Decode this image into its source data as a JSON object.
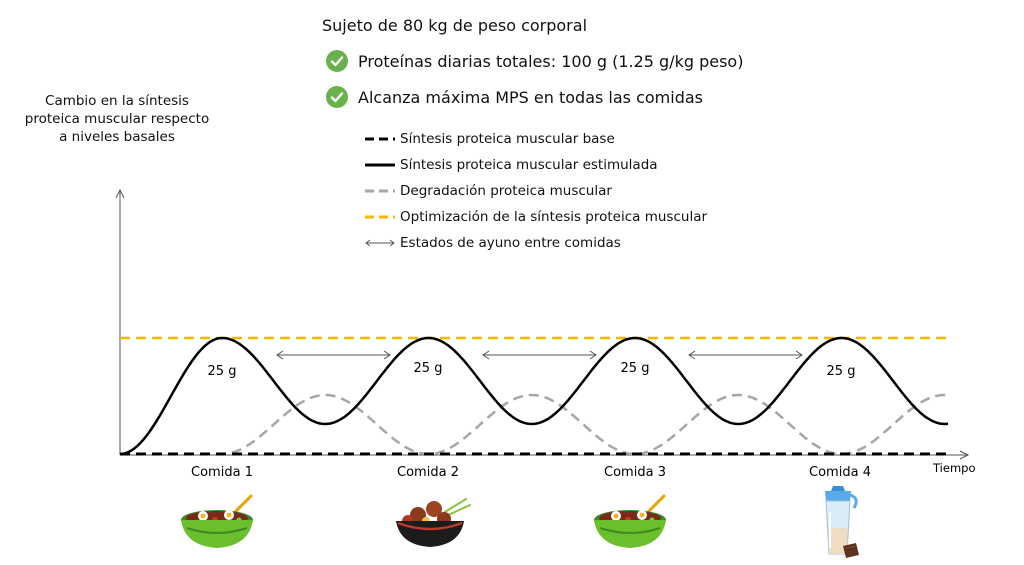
{
  "header": {
    "title": "Sujeto de 80 kg de peso corporal",
    "checks": [
      "Proteínas diarias totales: 100 g (1.25 g/kg peso)",
      "Alcanza máxima MPS en todas las comidas"
    ]
  },
  "axes": {
    "ylabel": "Cambio en la síntesis proteica muscular respecto a niveles basales",
    "xlabel": "Tiempo"
  },
  "legend": [
    {
      "label": "Síntesis proteica muscular base",
      "style": "dashed",
      "color": "#000000"
    },
    {
      "label": "Síntesis proteica muscular estimulada",
      "style": "solid",
      "color": "#000000"
    },
    {
      "label": "Degradación proteica muscular",
      "style": "dashed",
      "color": "#a6a6a6"
    },
    {
      "label": "Optimización de la síntesis proteica muscular",
      "style": "dashed",
      "color": "#f5b800"
    },
    {
      "label": "Estados de ayuno entre comidas",
      "style": "double-arrow",
      "color": "#555555"
    }
  ],
  "meals": [
    {
      "label": "Comida 1",
      "amount": "25 g",
      "icon": "salad-bowl-icon"
    },
    {
      "label": "Comida 2",
      "amount": "25 g",
      "icon": "meatball-bowl-icon"
    },
    {
      "label": "Comida 3",
      "amount": "25 g",
      "icon": "salad-bowl-icon"
    },
    {
      "label": "Comida 4",
      "amount": "25 g",
      "icon": "protein-shaker-icon"
    }
  ],
  "colors": {
    "check": "#6ab04c",
    "optimal": "#f5b800",
    "degradation": "#a6a6a6",
    "synthesis": "#000000"
  }
}
